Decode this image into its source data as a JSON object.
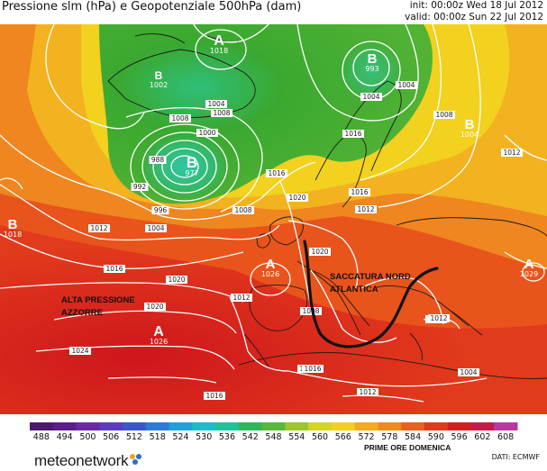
{
  "header": {
    "title": "Pressione slm (hPa) e Geopotenziale 500hPa (dam)",
    "init": "init: 00:00z Wed 18 Jul 2012",
    "valid": "valid: 00:00z Sun 22 Jul 2012"
  },
  "colors": {
    "ocean_warm": "#e23a1c",
    "ocean_hot": "#d0161b",
    "orange": "#f08a1e",
    "yellow": "#f2c81e",
    "green": "#3aa630",
    "isobar": "#ffffff",
    "coastline": "#1a1a1a"
  },
  "centers": [
    {
      "type": "A",
      "value": "1018"
    },
    {
      "type": "B",
      "value": "1002"
    },
    {
      "type": "B",
      "value": "993"
    },
    {
      "type": "B",
      "value": "977"
    },
    {
      "type": "B",
      "value": "1004"
    },
    {
      "type": "B",
      "value": "1018"
    },
    {
      "type": "A",
      "value": "1026"
    },
    {
      "type": "A",
      "value": "1026"
    },
    {
      "type": "A",
      "value": "1029"
    }
  ],
  "isobar_labels": [
    "1004",
    "1008",
    "1008",
    "1000",
    "988",
    "992",
    "996",
    "1004",
    "1008",
    "1012",
    "1016",
    "1020",
    "1012",
    "1016",
    "1020",
    "1024",
    "1024",
    "1016",
    "1020",
    "1016",
    "1012",
    "1004",
    "1004",
    "1008",
    "1012",
    "1016",
    "1020",
    "1008",
    "1012",
    "1024",
    "1004",
    "1016",
    "1012"
  ],
  "annotations": {
    "azores": [
      "ALTA PRESSIONE",
      "AZZORRE"
    ],
    "trough": [
      "SACCATURA NORD",
      "ATLANTICA"
    ]
  },
  "legend": {
    "values": [
      "488",
      "494",
      "500",
      "506",
      "512",
      "518",
      "524",
      "530",
      "536",
      "542",
      "548",
      "554",
      "560",
      "566",
      "572",
      "578",
      "584",
      "590",
      "596",
      "602",
      "608"
    ],
    "colors": [
      "#4a1a6e",
      "#5b1f8a",
      "#6a2aa4",
      "#5a3dbf",
      "#3b57c9",
      "#2c7bd6",
      "#1fa0d9",
      "#1bbdc7",
      "#1fc39a",
      "#2fb55a",
      "#58b839",
      "#9bc72d",
      "#d4d423",
      "#f3cf1f",
      "#f5ab1e",
      "#ef8a1d",
      "#e8611e",
      "#e23a1c",
      "#d31d1f",
      "#c81a4a",
      "#b63aa0"
    ],
    "caption": "PRIME ORE DOMENICA"
  },
  "footer": {
    "brand": "meteonetwork",
    "source": "DATI: ECMWF"
  }
}
